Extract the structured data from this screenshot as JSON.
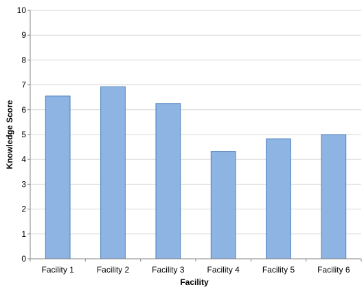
{
  "chart_data": {
    "type": "bar",
    "title": "",
    "xlabel": "Facility",
    "ylabel": "Knowledge Score",
    "categories": [
      "Facility 1",
      "Facility 2",
      "Facility 3",
      "Facility 4",
      "Facility 5",
      "Facility 6"
    ],
    "values": [
      6.55,
      6.92,
      6.25,
      4.32,
      4.83,
      5.0
    ],
    "ylim": [
      0,
      10
    ],
    "yticks": [
      0,
      1,
      2,
      3,
      4,
      5,
      6,
      7,
      8,
      9,
      10
    ],
    "grid": true,
    "legend": "none",
    "colors": {
      "bar_fill": "#8EB4E3",
      "bar_stroke": "#4F81BD",
      "grid": "#D9D9D9",
      "axis": "#868686"
    }
  }
}
